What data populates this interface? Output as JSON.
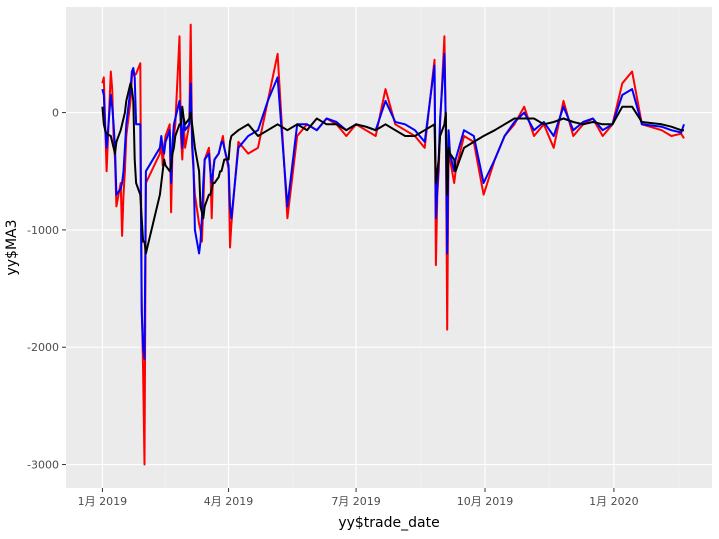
{
  "chart_data": {
    "type": "line",
    "title": "",
    "xlabel": "yy$trade_date",
    "ylabel": "yy$MA3",
    "x_ticks": [
      {
        "label": "1月 2019",
        "date": "2019-01-01"
      },
      {
        "label": "4月 2019",
        "date": "2019-04-01"
      },
      {
        "label": "7月 2019",
        "date": "2019-07-01"
      },
      {
        "label": "10月 2019",
        "date": "2019-10-01"
      },
      {
        "label": "1月 2020",
        "date": "2020-01-01"
      }
    ],
    "y_ticks": [
      0,
      -1000,
      -2000,
      -3000
    ],
    "xlim": [
      "2018-12-06",
      "2020-03-11"
    ],
    "ylim": [
      -3200,
      900
    ],
    "grid": true,
    "legend": "none",
    "colors": {
      "panel": "#ebebeb",
      "grid_major": "#ffffff",
      "grid_minor": "#f4f4f4",
      "tick_text": "#4d4d4d",
      "axis_title": "#000000"
    },
    "series": [
      {
        "color": "#ff0000",
        "x": [
          "2019-01-01",
          "2019-01-02",
          "2019-01-03",
          "2019-01-04",
          "2019-01-07",
          "2019-01-08",
          "2019-01-09",
          "2019-01-10",
          "2019-01-11",
          "2019-01-14",
          "2019-01-15",
          "2019-01-16",
          "2019-01-17",
          "2019-01-18",
          "2019-01-21",
          "2019-01-22",
          "2019-01-23",
          "2019-01-24",
          "2019-01-25",
          "2019-01-28",
          "2019-01-29",
          "2019-01-30",
          "2019-01-31",
          "2019-02-01",
          "2019-02-11",
          "2019-02-12",
          "2019-02-13",
          "2019-02-14",
          "2019-02-15",
          "2019-02-18",
          "2019-02-19",
          "2019-02-20",
          "2019-02-21",
          "2019-02-22",
          "2019-02-25",
          "2019-02-26",
          "2019-02-27",
          "2019-02-28",
          "2019-03-01",
          "2019-03-04",
          "2019-03-05",
          "2019-03-06",
          "2019-03-07",
          "2019-03-08",
          "2019-03-11",
          "2019-03-12",
          "2019-03-13",
          "2019-03-14",
          "2019-03-15",
          "2019-03-18",
          "2019-03-19",
          "2019-03-20",
          "2019-03-21",
          "2019-03-22",
          "2019-03-25",
          "2019-03-26",
          "2019-03-27",
          "2019-03-28",
          "2019-03-29",
          "2019-04-01",
          "2019-04-02",
          "2019-04-03",
          "2019-04-08",
          "2019-04-15",
          "2019-04-22",
          "2019-04-29",
          "2019-05-06",
          "2019-05-13",
          "2019-05-20",
          "2019-05-27",
          "2019-06-03",
          "2019-06-10",
          "2019-06-17",
          "2019-06-24",
          "2019-07-01",
          "2019-07-08",
          "2019-07-15",
          "2019-07-22",
          "2019-07-29",
          "2019-08-05",
          "2019-08-12",
          "2019-08-19",
          "2019-08-26",
          "2019-08-27",
          "2019-08-28",
          "2019-08-29",
          "2019-08-30",
          "2019-09-02",
          "2019-09-03",
          "2019-09-04",
          "2019-09-05",
          "2019-09-06",
          "2019-09-09",
          "2019-09-10",
          "2019-09-16",
          "2019-09-23",
          "2019-09-30",
          "2019-10-08",
          "2019-10-15",
          "2019-10-22",
          "2019-10-29",
          "2019-11-05",
          "2019-11-12",
          "2019-11-19",
          "2019-11-26",
          "2019-12-03",
          "2019-12-10",
          "2019-12-17",
          "2019-12-24",
          "2019-12-31",
          "2020-01-07",
          "2020-01-14",
          "2020-01-21",
          "2020-02-04",
          "2020-02-11",
          "2020-02-18",
          "2020-02-20"
        ],
        "values": [
          250,
          300,
          -100,
          -500,
          350,
          200,
          -200,
          -400,
          -800,
          -600,
          -1050,
          -700,
          -500,
          -200,
          100,
          300,
          350,
          320,
          330,
          420,
          -1600,
          -2200,
          -3000,
          -600,
          -350,
          -250,
          -450,
          -300,
          -200,
          -100,
          -850,
          -300,
          -200,
          -100,
          650,
          -200,
          -400,
          -100,
          -300,
          -100,
          750,
          -300,
          -500,
          -700,
          -950,
          -1000,
          -1100,
          -800,
          -400,
          -300,
          -450,
          -900,
          -500,
          -400,
          -350,
          -300,
          -250,
          -200,
          -300,
          -480,
          -1150,
          -950,
          -250,
          -350,
          -300,
          100,
          500,
          -900,
          -200,
          -100,
          -150,
          -50,
          -100,
          -200,
          -100,
          -150,
          -200,
          200,
          -100,
          -150,
          -200,
          -300,
          450,
          -1300,
          -700,
          -500,
          -100,
          650,
          -100,
          -1850,
          -200,
          -400,
          -600,
          -500,
          -200,
          -250,
          -700,
          -400,
          -200,
          -100,
          50,
          -200,
          -100,
          -300,
          100,
          -200,
          -100,
          -50,
          -200,
          -100,
          250,
          350,
          -100,
          -150,
          -200,
          -180,
          -220
        ],
        "note_ignore": ""
      },
      {
        "color": "#0000ff",
        "x": [
          "2019-01-01",
          "2019-01-02",
          "2019-01-03",
          "2019-01-04",
          "2019-01-07",
          "2019-01-08",
          "2019-01-09",
          "2019-01-10",
          "2019-01-11",
          "2019-01-14",
          "2019-01-15",
          "2019-01-16",
          "2019-01-17",
          "2019-01-18",
          "2019-01-21",
          "2019-01-22",
          "2019-01-23",
          "2019-01-24",
          "2019-01-25",
          "2019-01-28",
          "2019-01-29",
          "2019-01-30",
          "2019-01-31",
          "2019-02-01",
          "2019-02-11",
          "2019-02-12",
          "2019-02-13",
          "2019-02-14",
          "2019-02-15",
          "2019-02-18",
          "2019-02-19",
          "2019-02-20",
          "2019-02-21",
          "2019-02-22",
          "2019-02-25",
          "2019-02-26",
          "2019-02-27",
          "2019-02-28",
          "2019-03-01",
          "2019-03-04",
          "2019-03-05",
          "2019-03-06",
          "2019-03-07",
          "2019-03-08",
          "2019-03-11",
          "2019-03-12",
          "2019-03-13",
          "2019-03-14",
          "2019-03-15",
          "2019-03-18",
          "2019-03-19",
          "2019-03-20",
          "2019-03-21",
          "2019-03-22",
          "2019-03-25",
          "2019-03-26",
          "2019-03-27",
          "2019-03-28",
          "2019-03-29",
          "2019-04-01",
          "2019-04-02",
          "2019-04-03",
          "2019-04-08",
          "2019-04-15",
          "2019-04-22",
          "2019-04-29",
          "2019-05-06",
          "2019-05-13",
          "2019-05-20",
          "2019-05-27",
          "2019-06-03",
          "2019-06-10",
          "2019-06-17",
          "2019-06-24",
          "2019-07-01",
          "2019-07-08",
          "2019-07-15",
          "2019-07-22",
          "2019-07-29",
          "2019-08-05",
          "2019-08-12",
          "2019-08-19",
          "2019-08-26",
          "2019-08-27",
          "2019-08-28",
          "2019-08-29",
          "2019-08-30",
          "2019-09-02",
          "2019-09-03",
          "2019-09-04",
          "2019-09-05",
          "2019-09-06",
          "2019-09-09",
          "2019-09-10",
          "2019-09-16",
          "2019-09-23",
          "2019-09-30",
          "2019-10-08",
          "2019-10-15",
          "2019-10-22",
          "2019-10-29",
          "2019-11-05",
          "2019-11-12",
          "2019-11-19",
          "2019-11-26",
          "2019-12-03",
          "2019-12-10",
          "2019-12-17",
          "2019-12-24",
          "2019-12-31",
          "2020-01-07",
          "2020-01-14",
          "2020-01-21",
          "2020-02-04",
          "2020-02-11",
          "2020-02-18",
          "2020-02-20"
        ],
        "values": [
          200,
          150,
          -150,
          -300,
          150,
          50,
          -100,
          -300,
          -700,
          -650,
          -600,
          -500,
          -300,
          -100,
          200,
          350,
          380,
          300,
          -100,
          -100,
          -1700,
          -2000,
          -2100,
          -500,
          -300,
          -200,
          -300,
          -350,
          -250,
          -150,
          -600,
          -250,
          -100,
          -50,
          100,
          -100,
          -300,
          -50,
          -150,
          -100,
          250,
          -250,
          -450,
          -1000,
          -1200,
          -1100,
          -900,
          -600,
          -400,
          -350,
          -500,
          -600,
          -500,
          -400,
          -350,
          -300,
          -250,
          -250,
          -300,
          -450,
          -800,
          -900,
          -300,
          -200,
          -150,
          100,
          300,
          -800,
          -100,
          -100,
          -150,
          -50,
          -80,
          -150,
          -100,
          -120,
          -150,
          100,
          -80,
          -100,
          -150,
          -250,
          400,
          -900,
          -650,
          -400,
          -50,
          500,
          -100,
          -1200,
          -150,
          -350,
          -500,
          -400,
          -150,
          -200,
          -600,
          -400,
          -200,
          -80,
          0,
          -150,
          -80,
          -200,
          50,
          -150,
          -80,
          -50,
          -150,
          -100,
          150,
          200,
          -100,
          -120,
          -150,
          -170,
          -100
        ],
        "note_ignore": ""
      },
      {
        "color": "#000000",
        "x": [
          "2019-01-01",
          "2019-01-02",
          "2019-01-03",
          "2019-01-04",
          "2019-01-07",
          "2019-01-08",
          "2019-01-09",
          "2019-01-10",
          "2019-01-11",
          "2019-01-14",
          "2019-01-15",
          "2019-01-16",
          "2019-01-17",
          "2019-01-18",
          "2019-01-21",
          "2019-01-22",
          "2019-01-23",
          "2019-01-24",
          "2019-01-25",
          "2019-01-28",
          "2019-01-29",
          "2019-01-30",
          "2019-01-31",
          "2019-02-01",
          "2019-02-11",
          "2019-02-12",
          "2019-02-13",
          "2019-02-14",
          "2019-02-15",
          "2019-02-18",
          "2019-02-19",
          "2019-02-20",
          "2019-02-21",
          "2019-02-22",
          "2019-02-25",
          "2019-02-26",
          "2019-02-27",
          "2019-02-28",
          "2019-03-01",
          "2019-03-04",
          "2019-03-05",
          "2019-03-06",
          "2019-03-07",
          "2019-03-08",
          "2019-03-11",
          "2019-03-12",
          "2019-03-13",
          "2019-03-14",
          "2019-03-15",
          "2019-03-18",
          "2019-03-19",
          "2019-03-20",
          "2019-03-21",
          "2019-03-22",
          "2019-03-25",
          "2019-03-26",
          "2019-03-27",
          "2019-03-28",
          "2019-03-29",
          "2019-04-01",
          "2019-04-02",
          "2019-04-03",
          "2019-04-08",
          "2019-04-15",
          "2019-04-22",
          "2019-04-29",
          "2019-05-06",
          "2019-05-13",
          "2019-05-20",
          "2019-05-27",
          "2019-06-03",
          "2019-06-10",
          "2019-06-17",
          "2019-06-24",
          "2019-07-01",
          "2019-07-08",
          "2019-07-15",
          "2019-07-22",
          "2019-07-29",
          "2019-08-05",
          "2019-08-12",
          "2019-08-19",
          "2019-08-26",
          "2019-08-27",
          "2019-08-28",
          "2019-08-29",
          "2019-08-30",
          "2019-09-02",
          "2019-09-03",
          "2019-09-04",
          "2019-09-05",
          "2019-09-06",
          "2019-09-09",
          "2019-09-10",
          "2019-09-16",
          "2019-09-23",
          "2019-09-30",
          "2019-10-08",
          "2019-10-15",
          "2019-10-22",
          "2019-10-29",
          "2019-11-05",
          "2019-11-12",
          "2019-11-19",
          "2019-11-26",
          "2019-12-03",
          "2019-12-10",
          "2019-12-17",
          "2019-12-24",
          "2019-12-31",
          "2020-01-07",
          "2020-01-14",
          "2020-01-21",
          "2020-02-04",
          "2020-02-11",
          "2020-02-18",
          "2020-02-20"
        ],
        "values": [
          50,
          -100,
          -150,
          -180,
          -200,
          -250,
          -300,
          -350,
          -250,
          -150,
          -100,
          -50,
          0,
          100,
          250,
          200,
          100,
          -400,
          -600,
          -700,
          -900,
          -1100,
          -1100,
          -1200,
          -700,
          -600,
          -500,
          -400,
          -450,
          -500,
          -450,
          -350,
          -300,
          -200,
          -100,
          -100,
          50,
          -50,
          -100,
          -50,
          0,
          -100,
          -200,
          -300,
          -500,
          -800,
          -850,
          -900,
          -800,
          -700,
          -700,
          -650,
          -600,
          -600,
          -550,
          -500,
          -500,
          -450,
          -400,
          -400,
          -250,
          -200,
          -150,
          -100,
          -200,
          -150,
          -100,
          -150,
          -100,
          -150,
          -50,
          -100,
          -100,
          -150,
          -100,
          -120,
          -150,
          -100,
          -150,
          -200,
          -200,
          -150,
          -100,
          -600,
          -500,
          -400,
          -200,
          -100,
          0,
          -700,
          -300,
          -350,
          -400,
          -500,
          -300,
          -250,
          -200,
          -150,
          -100,
          -50,
          -50,
          -50,
          -100,
          -80,
          -50,
          -80,
          -100,
          -80,
          -100,
          -100,
          50,
          50,
          -80,
          -100,
          -120,
          -150,
          -150
        ],
        "note_ignore": ""
      }
    ]
  }
}
